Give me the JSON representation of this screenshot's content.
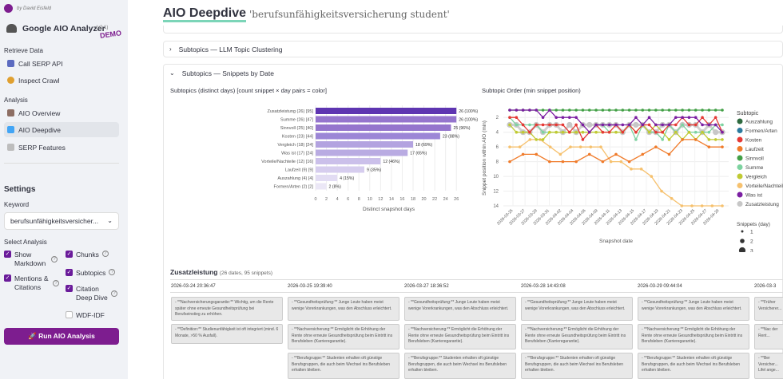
{
  "sidebar": {
    "byline": "by David Eisfeld",
    "app_title": "Google AIO Analyzer",
    "version": "(v2.1)",
    "demo": "DEMO",
    "retrieve_label": "Retrieve Data",
    "retrieve_items": [
      {
        "label": "Call SERP API",
        "icon": "api-icon"
      },
      {
        "label": "Inspect Crawl",
        "icon": "crawl-icon"
      }
    ],
    "analysis_label": "Analysis",
    "analysis_items": [
      {
        "label": "AIO Overview",
        "icon": "overview-icon"
      },
      {
        "label": "AIO Deepdive",
        "icon": "chart-icon",
        "active": true
      },
      {
        "label": "SERP Features",
        "icon": "features-icon"
      }
    ],
    "settings": "Settings",
    "keyword_label": "Keyword",
    "keyword_value": "berufsunfähigkeitsversicher...",
    "select_analysis": "Select Analysis",
    "opt_show_markdown": "Show Markdown",
    "opt_chunks": "Chunks",
    "opt_mentions": "Mentions & Citations",
    "opt_subtopics": "Subtopics",
    "opt_citation_deep": "Citation Deep Dive",
    "opt_wdf": "WDF-IDF",
    "run_button": "🚀 Run AIO Analysis",
    "accent": "#7d1d8f"
  },
  "main": {
    "title": "AIO Deepdive",
    "query": "'berufsunfähigkeitsversicherung student'",
    "exp1": "Subtopics — LLM Topic Clustering",
    "exp2": "Subtopics — Snippets by Date",
    "zus_title": "Zusatzleistung",
    "zus_meta": "(26 dates, 95 snippets)",
    "dates": [
      "2026-03-24 20:36:47",
      "2026-03-25 19:39:40",
      "2026-03-27 18:36:52",
      "2026-03-28 14:43:08",
      "2026-03-29 09:44:04",
      "2026-03-3"
    ],
    "snippets": {
      "c0": [
        "- **Nachversicherungsgarantie:** Wichtig, um die Rente später ohne erneute Gesundheitsprüfung bei Berufseinstieg zu erhöhen.",
        "- **Definition:** Studienunfähigkeit ist oft integriert (mind. 6 Monate, >50 % Ausfall)."
      ],
      "gh": "- **Gesundheitsprüfung:** Junge Leute haben meist wenige Vorerkrankungen, was den Abschluss erleichtert.",
      "nv": "- **Nachversicherung:** Ermöglicht die Erhöhung der Rente ohne erneute Gesundheitsprüfung beim Eintritt ins Berufsleben (Karrieregarantie).",
      "bg": "- **Berufsgruppe:** Studenten erhalten oft günstige Berufsgruppen, die auch beim Wechsel ins Berufsleben erhalten bleiben.",
      "last": [
        "- **Früher Versicherer...",
        "- **Nac der Rent...",
        "- **Ber Versicher... Lifel ange..."
      ]
    }
  },
  "chart_data": [
    {
      "type": "bar",
      "title": "Subtopics (distinct days) [count snippet × day pairs = color]",
      "categories": [
        "Zusatzleistung (26) [95]",
        "Summe (26) [47]",
        "Sinnvoll (25) [40]",
        "Kosten (23) [44]",
        "Vergleich (18) [24]",
        "Was ist (17) [24]",
        "Vorteile/Nachteile (12) [16]",
        "Laufzeit (9) [9]",
        "Auszahlung (4) [4]",
        "Formen/Arten (2) [2]"
      ],
      "values": [
        26,
        26,
        25,
        23,
        18,
        17,
        12,
        9,
        4,
        2
      ],
      "data_labels": [
        "26 (100%)",
        "26 (100%)",
        "25 (96%)",
        "23 (88%)",
        "18 (69%)",
        "17 (65%)",
        "12 (46%)",
        "9 (35%)",
        "4 (15%)",
        "2 (8%)"
      ],
      "colors": [
        "#5e35b1",
        "#9575cd",
        "#9575cd",
        "#9c86d6",
        "#b3a3e0",
        "#b9abe2",
        "#cbc0ea",
        "#d6cdee",
        "#e2dcf3",
        "#ebe7f6"
      ],
      "xlabel": "Distinct snapshot days",
      "xticks": [
        0,
        2,
        4,
        6,
        8,
        10,
        12,
        14,
        16,
        18,
        20,
        22,
        24,
        26
      ],
      "xlim": [
        0,
        27
      ]
    },
    {
      "type": "line",
      "title": "Subtopic Order (min snippet position)",
      "xlabel": "Snapshot date",
      "ylabel": "Snippet position within AIO (min)",
      "ylim": [
        14,
        1
      ],
      "yticks": [
        2,
        4,
        6,
        8,
        10,
        12,
        14
      ],
      "xticks": [
        "2026-03-25",
        "2026-03-27",
        "2026-03-29",
        "2026-03-31",
        "2026-04-02",
        "2026-04-04",
        "2026-04-06",
        "2026-04-09",
        "2026-04-11",
        "2026-04-13",
        "2026-04-15",
        "2026-04-17",
        "2026-04-19",
        "2026-04-21",
        "2026-04-23",
        "2026-04-25",
        "2026-04-27",
        "2026-04-29"
      ],
      "legend_title": "Subtopic",
      "series": [
        {
          "name": "Auszahlung",
          "color": "#2e6a3f",
          "values": []
        },
        {
          "name": "Formen/Arten",
          "color": "#2b7a9e",
          "values": []
        },
        {
          "name": "Kosten",
          "color": "#e53935",
          "values": [
            2,
            2,
            3,
            4,
            3,
            3,
            3,
            3,
            3,
            4,
            3,
            5,
            4,
            3,
            4,
            4,
            3,
            4,
            3,
            4,
            3,
            3,
            4,
            4,
            3,
            3,
            2,
            3,
            3,
            2,
            3,
            2,
            4
          ]
        },
        {
          "name": "Laufzeit",
          "color": "#f07b2a",
          "values": [
            8,
            7,
            7,
            8,
            8,
            8,
            7,
            8,
            7,
            8,
            7,
            6,
            7,
            5,
            5,
            6,
            6
          ]
        },
        {
          "name": "Sinnvoll",
          "color": "#43a047",
          "values": [
            1,
            1,
            1,
            1,
            1,
            1,
            1,
            1,
            1,
            1,
            1,
            1,
            1,
            1,
            1,
            1,
            1,
            1,
            1,
            1,
            1,
            1,
            1,
            1,
            1,
            1,
            1,
            1,
            1,
            1,
            1,
            1,
            1
          ]
        },
        {
          "name": "Summe",
          "color": "#7dd3a0",
          "values": [
            2,
            3,
            3,
            3,
            3,
            4,
            4,
            4,
            4,
            4,
            4,
            4,
            4,
            3,
            3,
            4,
            4,
            4,
            3,
            5,
            3,
            4,
            4,
            5,
            3,
            4,
            3,
            4,
            4,
            4,
            4,
            3,
            3
          ]
        },
        {
          "name": "Vergleich",
          "color": "#c0ca33",
          "values": [
            3,
            4,
            4,
            4,
            5,
            5,
            4,
            4,
            4,
            4,
            4,
            4,
            4,
            4,
            4,
            4,
            4,
            4,
            3,
            4,
            3,
            4,
            3,
            4,
            5,
            4,
            5,
            4,
            5,
            4,
            5,
            5,
            5
          ]
        },
        {
          "name": "Vorteile/Nachteile",
          "color": "#f6c16e",
          "values": [
            6,
            6,
            5,
            5,
            6,
            7,
            6,
            6,
            6,
            6,
            8,
            8,
            9,
            9,
            10,
            12,
            13,
            14,
            14,
            14,
            14,
            14
          ]
        },
        {
          "name": "Was ist",
          "color": "#7b1fa2",
          "values": [
            1,
            1,
            1,
            1,
            1,
            2,
            1,
            2,
            2,
            2,
            2,
            3,
            4,
            3,
            3,
            3,
            3,
            3,
            3,
            2,
            3,
            2,
            3,
            3,
            3,
            2,
            2,
            2,
            2,
            3,
            3,
            3,
            4
          ]
        },
        {
          "name": "Zusatzleistung",
          "color": "#c7c7c7",
          "values": [
            3,
            3,
            4,
            4,
            3,
            4,
            3,
            3,
            4,
            3,
            4,
            3,
            3,
            3,
            3,
            3,
            3,
            4,
            3,
            3,
            3,
            4,
            4,
            3,
            3,
            4,
            3,
            3,
            3,
            4,
            3,
            4,
            4
          ]
        }
      ],
      "size_legend": {
        "title": "Snippets (day)",
        "items": [
          "1",
          "2",
          "3"
        ]
      }
    }
  ]
}
